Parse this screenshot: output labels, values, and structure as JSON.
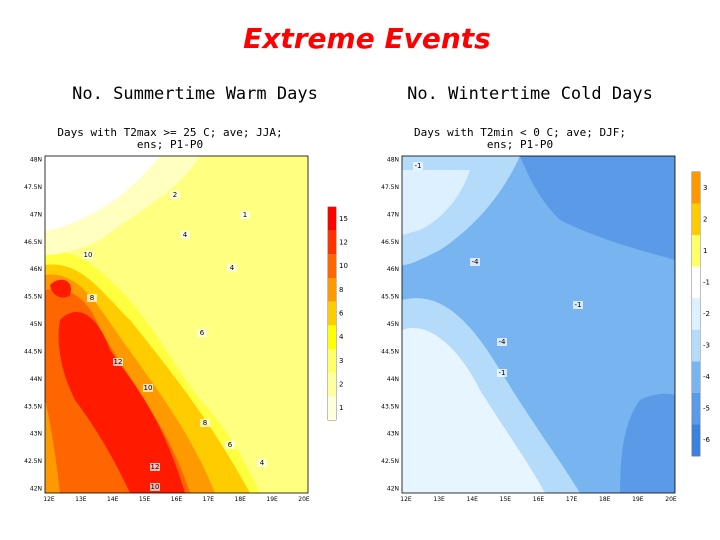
{
  "title": "Extreme Events",
  "panels": [
    {
      "heading": "No. Summertime Warm Days",
      "map_title": [
        "Days with T2max >= 25 C; ave; JJA;",
        "ens; P1-P0"
      ],
      "lat_labels": [
        "48N",
        "47.5N",
        "47N",
        "46.5N",
        "46N",
        "45.5N",
        "45N",
        "44.5N",
        "44N",
        "43.5N",
        "43N",
        "42.5N",
        "42N"
      ],
      "lon_labels": [
        "12E",
        "13E",
        "14E",
        "15E",
        "16E",
        "17E",
        "18E",
        "19E",
        "20E"
      ],
      "colorbar_ticks": [
        15,
        12,
        10,
        8,
        6,
        4,
        3,
        2,
        1
      ],
      "contour_labels": [
        "2",
        "4",
        "1",
        "4",
        "6",
        "8",
        "10",
        "12",
        "10",
        "8",
        "6",
        "4",
        "12",
        "10"
      ]
    },
    {
      "heading": "No. Wintertime Cold Days",
      "map_title": [
        "Days with T2min < 0 C; ave; DJF;",
        "ens; P1-P0"
      ],
      "lat_labels": [
        "48N",
        "47.5N",
        "47N",
        "46.5N",
        "46N",
        "45.5N",
        "45N",
        "44.5N",
        "44N",
        "43.5N",
        "43N",
        "42.5N",
        "42N"
      ],
      "lon_labels": [
        "12E",
        "13E",
        "14E",
        "15E",
        "16E",
        "17E",
        "18E",
        "19E",
        "20E"
      ],
      "colorbar_ticks": [
        3,
        2,
        1,
        -1,
        -2,
        -3,
        -4,
        -5,
        -6
      ],
      "contour_labels": [
        "-1",
        "-4",
        "-1",
        "-4",
        "-1"
      ]
    }
  ]
}
